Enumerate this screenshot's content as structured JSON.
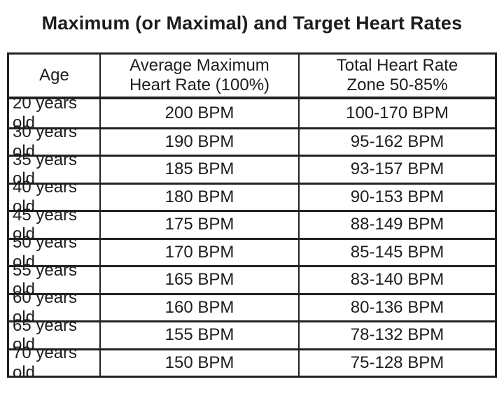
{
  "title": "Maximum (or Maximal) and Target Heart Rates",
  "colors": {
    "text": "#1d1d1d",
    "border": "#222222",
    "background": "#ffffff"
  },
  "chart_data": {
    "type": "table",
    "title": "Maximum (or Maximal) and Target Heart Rates",
    "columns": [
      "Age",
      "Average Maximum Heart Rate (100%)",
      "Total Heart Rate Zone 50-85%"
    ],
    "column_headers_display": [
      "Age",
      "Average Maximum\nHeart Rate (100%)",
      "Total Heart Rate\nZone 50-85%"
    ],
    "rows": [
      {
        "age": "20 years old",
        "avg_max_hr": "200 BPM",
        "target_zone": "100-170 BPM"
      },
      {
        "age": "30 years old",
        "avg_max_hr": "190 BPM",
        "target_zone": "95-162 BPM"
      },
      {
        "age": "35 years old",
        "avg_max_hr": "185 BPM",
        "target_zone": "93-157 BPM"
      },
      {
        "age": "40 years old",
        "avg_max_hr": "180 BPM",
        "target_zone": "90-153 BPM"
      },
      {
        "age": "45 years old",
        "avg_max_hr": "175 BPM",
        "target_zone": "88-149 BPM"
      },
      {
        "age": "50 years old",
        "avg_max_hr": "170 BPM",
        "target_zone": "85-145 BPM"
      },
      {
        "age": "55 years old",
        "avg_max_hr": "165 BPM",
        "target_zone": "83-140 BPM"
      },
      {
        "age": "60 years old",
        "avg_max_hr": "160 BPM",
        "target_zone": "80-136 BPM"
      },
      {
        "age": "65 years old",
        "avg_max_hr": "155 BPM",
        "target_zone": "78-132 BPM"
      },
      {
        "age": "70 years old",
        "avg_max_hr": "150 BPM",
        "target_zone": "75-128 BPM"
      }
    ],
    "numeric": {
      "ages": [
        20,
        30,
        35,
        40,
        45,
        50,
        55,
        60,
        65,
        70
      ],
      "max_bpm": [
        200,
        190,
        185,
        180,
        175,
        170,
        165,
        160,
        155,
        150
      ],
      "zone_low_bpm": [
        100,
        95,
        93,
        90,
        88,
        85,
        83,
        80,
        78,
        75
      ],
      "zone_high_bpm": [
        170,
        162,
        157,
        153,
        149,
        145,
        140,
        136,
        132,
        128
      ]
    }
  }
}
